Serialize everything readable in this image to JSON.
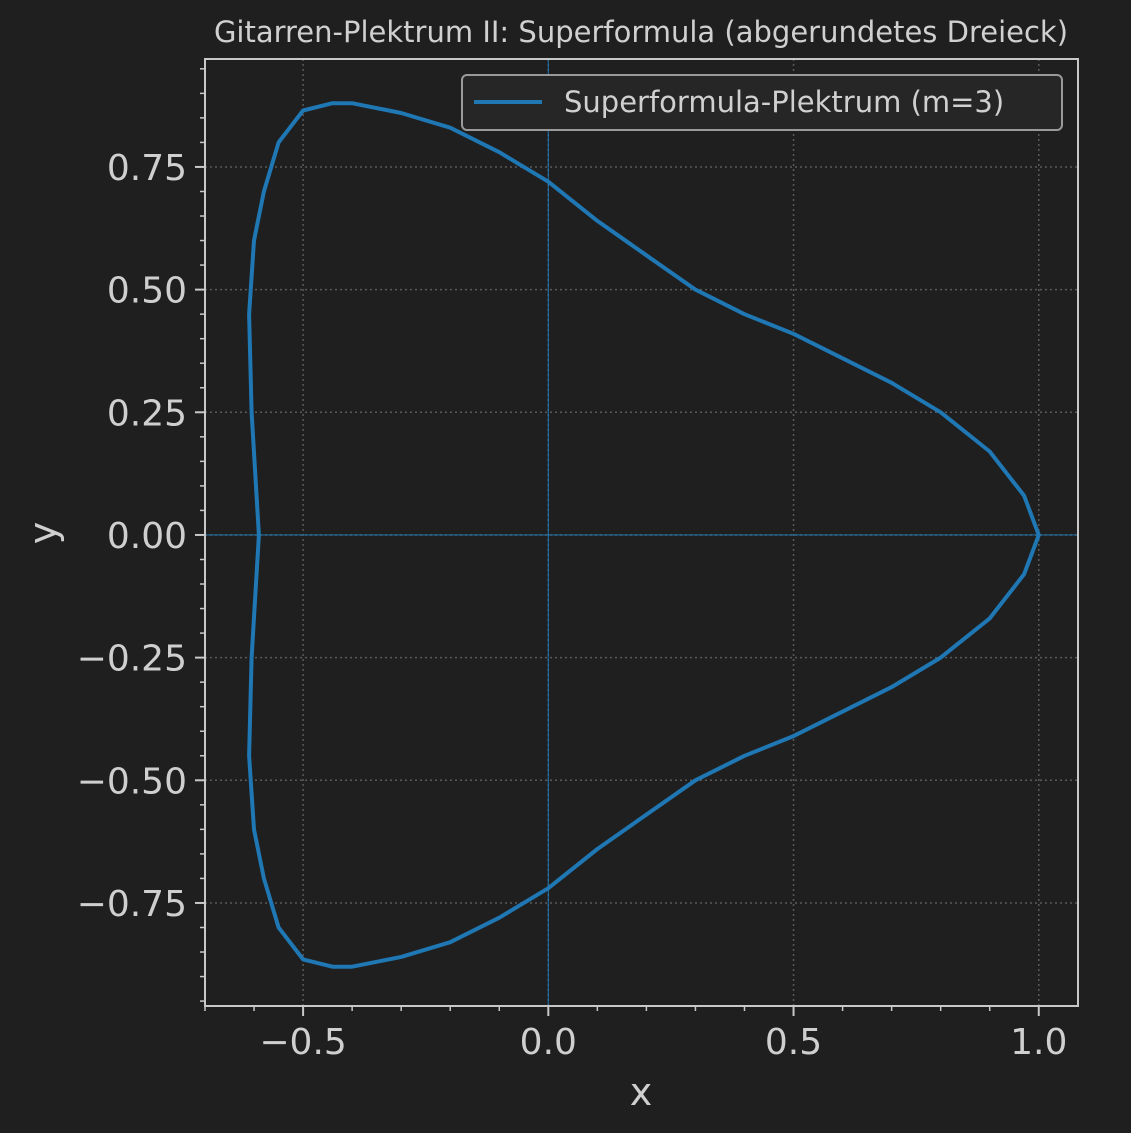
{
  "chart_data": {
    "type": "line",
    "title": "Gitarren-Plektrum II: Superformula (abgerundetes Dreieck)",
    "xlabel": "x",
    "ylabel": "y",
    "xlim": [
      -0.7,
      1.08
    ],
    "ylim": [
      -0.96,
      0.97
    ],
    "xticks": [
      -0.5,
      0.0,
      0.5,
      1.0
    ],
    "xtick_labels": [
      "−0.5",
      "0.0",
      "0.5",
      "1.0"
    ],
    "yticks": [
      0.75,
      0.5,
      0.25,
      0.0,
      -0.25,
      -0.5,
      -0.75
    ],
    "ytick_labels": [
      "0.75",
      "0.50",
      "0.25",
      "0.00",
      "−0.25",
      "−0.50",
      "−0.75"
    ],
    "grid": true,
    "reference_lines": {
      "x": 0,
      "y": 0
    },
    "legend_position": "upper right",
    "series": [
      {
        "name": "Superformula-Plektrum (m=3)",
        "color": "#1f77b4",
        "x": [
          1.0,
          0.97,
          0.9,
          0.8,
          0.7,
          0.6,
          0.5,
          0.4,
          0.3,
          0.2,
          0.1,
          0.0,
          -0.1,
          -0.2,
          -0.3,
          -0.4,
          -0.44,
          -0.5,
          -0.55,
          -0.58,
          -0.6,
          -0.61,
          -0.605,
          -0.59
        ],
        "y": [
          0.0,
          0.08,
          0.17,
          0.25,
          0.31,
          0.36,
          0.41,
          0.45,
          0.5,
          0.57,
          0.64,
          0.72,
          0.78,
          0.83,
          0.86,
          0.88,
          0.88,
          0.865,
          0.8,
          0.7,
          0.6,
          0.45,
          0.25,
          0.0
        ],
        "closed_shape": "mirrored about the x-axis"
      }
    ]
  }
}
